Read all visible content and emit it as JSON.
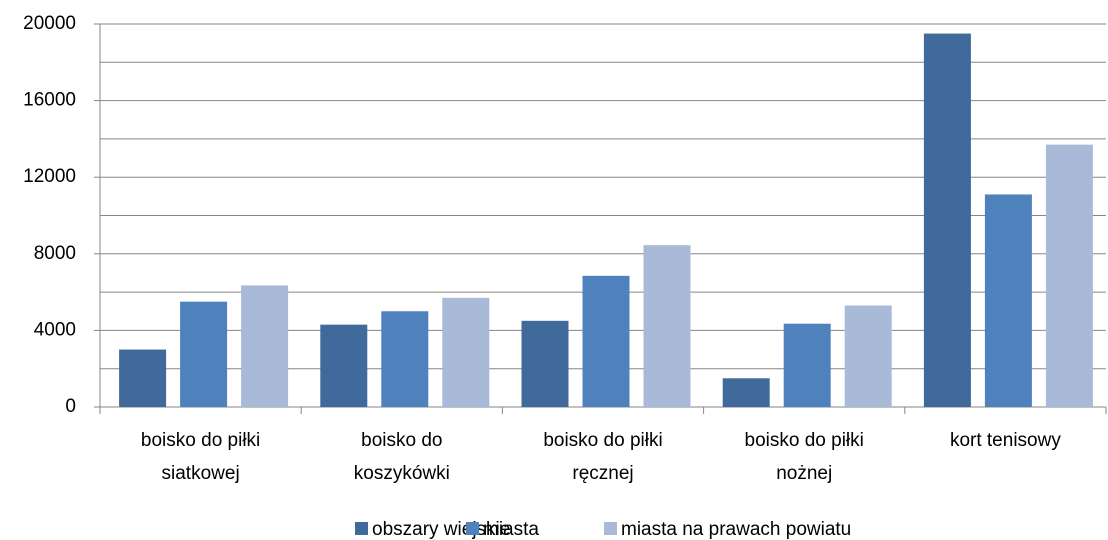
{
  "chart_data": {
    "type": "bar",
    "categories": [
      [
        "boisko do piłki",
        "siatkowej"
      ],
      [
        "boisko do",
        "koszykówki"
      ],
      [
        "boisko do piłki",
        "ręcznej"
      ],
      [
        "boisko do piłki",
        "nożnej"
      ],
      [
        "kort tenisowy"
      ]
    ],
    "series": [
      {
        "name": "obszary wiejskie",
        "color": "#416a9c",
        "values": [
          3000,
          4300,
          4500,
          1500,
          19500
        ]
      },
      {
        "name": "miasta",
        "color": "#4f81bd",
        "values": [
          5500,
          5000,
          6850,
          4350,
          11100
        ]
      },
      {
        "name": "miasta na prawach powiatu",
        "color": "#a9bad9",
        "values": [
          6350,
          5700,
          8450,
          5300,
          13700
        ]
      }
    ],
    "ylim": [
      0,
      20000
    ],
    "yticks": [
      0,
      4000,
      8000,
      12000,
      16000,
      20000
    ],
    "minor_yticks": [
      2000,
      6000,
      10000,
      14000,
      18000
    ],
    "grid": true,
    "legend": "bottom"
  }
}
